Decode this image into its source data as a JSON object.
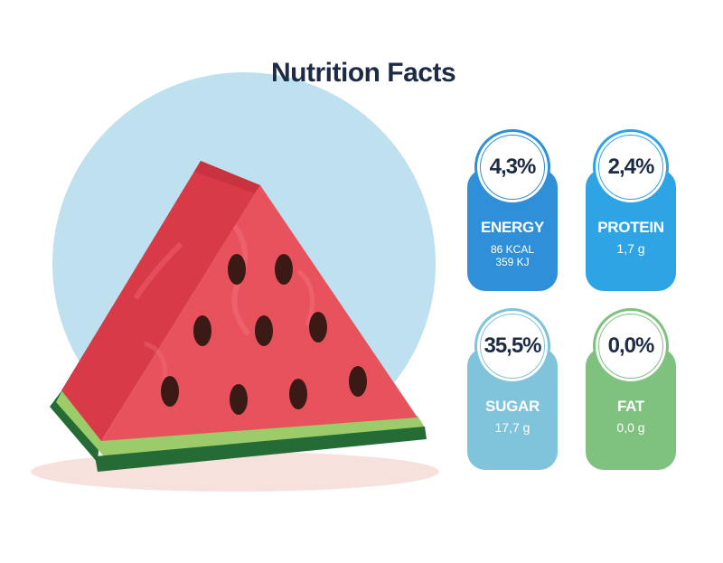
{
  "title": "Nutrition Facts",
  "colors": {
    "background_circle": "#bfe0ee",
    "watermelon_flesh": "#e84c56",
    "rind_light": "#9ccb6a",
    "rind_dark": "#256b36",
    "seed": "#3b1a16",
    "energy": "#2f8fd8",
    "protein": "#2ea4e5",
    "sugar": "#7fc4da",
    "fat": "#7fc17e"
  },
  "cards": {
    "energy": {
      "percent": "4,3%",
      "label": "ENERGY",
      "line1": "86 KCAL",
      "line2": "359 KJ"
    },
    "protein": {
      "percent": "2,4%",
      "label": "PROTEIN",
      "line1": "1,7 g"
    },
    "sugar": {
      "percent": "35,5%",
      "label": "SUGAR",
      "line1": "17,7 g"
    },
    "fat": {
      "percent": "0,0%",
      "label": "FAT",
      "line1": "0,0 g"
    }
  }
}
